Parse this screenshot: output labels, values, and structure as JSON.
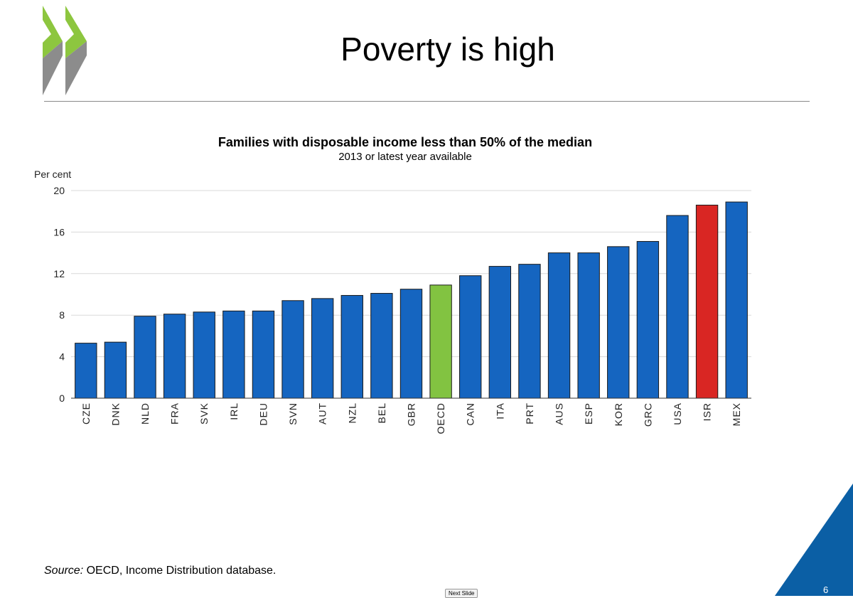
{
  "slide": {
    "title": "Poverty is high",
    "source_label": "Source:",
    "source_text": " OECD, Income Distribution database.",
    "next_slide_label": "Next Slide",
    "page_number": "6"
  },
  "colors": {
    "bar_default": "#1565c0",
    "bar_oecd": "#82c341",
    "bar_isr": "#d92623",
    "logo_green": "#8dc63f",
    "logo_gray": "#8c8c8c",
    "corner_blue": "#0b5fa5"
  },
  "chart_data": {
    "type": "bar",
    "title": "Families with disposable income less than 50% of the median",
    "subtitle": "2013 or latest year available",
    "ylabel": "Per cent",
    "ylim": [
      0,
      20
    ],
    "yticks": [
      0,
      4,
      8,
      12,
      16,
      20
    ],
    "grid": true,
    "categories": [
      "CZE",
      "DNK",
      "NLD",
      "FRA",
      "SVK",
      "IRL",
      "DEU",
      "SVN",
      "AUT",
      "NZL",
      "BEL",
      "GBR",
      "OECD",
      "CAN",
      "ITA",
      "PRT",
      "AUS",
      "ESP",
      "KOR",
      "GRC",
      "USA",
      "ISR",
      "MEX"
    ],
    "values": [
      5.3,
      5.4,
      7.9,
      8.1,
      8.3,
      8.4,
      8.4,
      9.4,
      9.6,
      9.9,
      10.1,
      10.5,
      10.9,
      11.8,
      12.7,
      12.9,
      14.0,
      14.0,
      14.6,
      15.1,
      17.6,
      18.6,
      18.9
    ],
    "highlights": {
      "OECD": "bar_oecd",
      "ISR": "bar_isr"
    }
  }
}
